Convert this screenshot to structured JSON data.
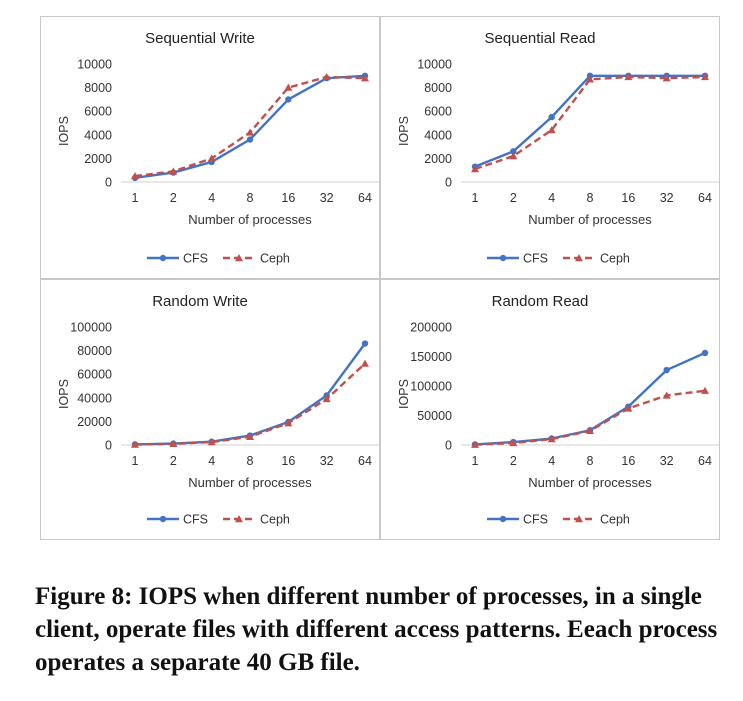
{
  "figure": {
    "caption": "Figure 8: IOPS when different number of processes, in a single client, operate files with different access patterns. Eeach process operates a separate 40 GB file."
  },
  "colors": {
    "cfs": "#4472C4",
    "ceph": "#C0504D",
    "axis": "#d0d0d0",
    "text": "#333333",
    "border": "#c8c8c8"
  },
  "chart_data": [
    {
      "type": "line",
      "title": "Sequential Write",
      "xlabel": "Number of processes",
      "ylabel": "IOPS",
      "categories": [
        "1",
        "2",
        "4",
        "8",
        "16",
        "32",
        "64"
      ],
      "yticks": [
        "0",
        "2000",
        "4000",
        "6000",
        "8000",
        "10000"
      ],
      "ylim": [
        0,
        10000
      ],
      "grid": false,
      "legend": "bottom",
      "series": [
        {
          "name": "CFS",
          "values": [
            350,
            800,
            1700,
            3600,
            7000,
            8800,
            9000
          ]
        },
        {
          "name": "Ceph",
          "values": [
            500,
            900,
            2000,
            4200,
            8000,
            8900,
            8800
          ]
        }
      ]
    },
    {
      "type": "line",
      "title": "Sequential Read",
      "xlabel": "Number of processes",
      "ylabel": "IOPS",
      "categories": [
        "1",
        "2",
        "4",
        "8",
        "16",
        "32",
        "64"
      ],
      "yticks": [
        "0",
        "2000",
        "4000",
        "6000",
        "8000",
        "10000"
      ],
      "ylim": [
        0,
        10000
      ],
      "grid": false,
      "legend": "bottom",
      "series": [
        {
          "name": "CFS",
          "values": [
            1300,
            2600,
            5500,
            9000,
            9000,
            9000,
            9000
          ]
        },
        {
          "name": "Ceph",
          "values": [
            1100,
            2200,
            4400,
            8700,
            8900,
            8800,
            8900
          ]
        }
      ]
    },
    {
      "type": "line",
      "title": "Random Write",
      "xlabel": "Number of processes",
      "ylabel": "IOPS",
      "categories": [
        "1",
        "2",
        "4",
        "8",
        "16",
        "32",
        "64"
      ],
      "yticks": [
        "0",
        "20000",
        "40000",
        "60000",
        "80000",
        "100000"
      ],
      "ylim": [
        0,
        100000
      ],
      "grid": false,
      "legend": "bottom",
      "series": [
        {
          "name": "CFS",
          "values": [
            500,
            1200,
            2800,
            8000,
            19500,
            42000,
            86000
          ]
        },
        {
          "name": "Ceph",
          "values": [
            400,
            1000,
            2500,
            7000,
            18500,
            39000,
            69000
          ]
        }
      ]
    },
    {
      "type": "line",
      "title": "Random Read",
      "xlabel": "Number of processes",
      "ylabel": "IOPS",
      "categories": [
        "1",
        "2",
        "4",
        "8",
        "16",
        "32",
        "64"
      ],
      "yticks": [
        "0",
        "50000",
        "100000",
        "150000",
        "200000"
      ],
      "ylim": [
        0,
        200000
      ],
      "grid": false,
      "legend": "bottom",
      "series": [
        {
          "name": "CFS",
          "values": [
            1000,
            5000,
            11000,
            25000,
            65000,
            127000,
            156000
          ]
        },
        {
          "name": "Ceph",
          "values": [
            500,
            3500,
            10000,
            24000,
            62000,
            84000,
            92000
          ]
        }
      ]
    }
  ]
}
